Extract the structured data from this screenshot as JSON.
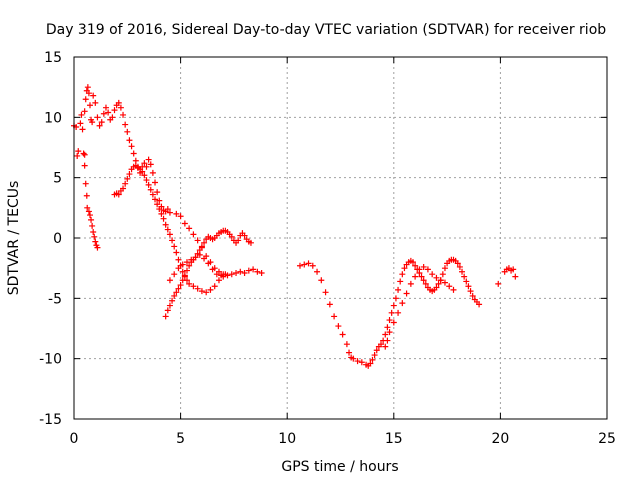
{
  "chart_data": {
    "type": "scatter",
    "title": "Day 319 of 2016, Sidereal Day-to-day VTEC variation (SDTVAR) for receiver riob",
    "xlabel": "GPS time / hours",
    "ylabel": "SDTVAR / TECUs",
    "xlim": [
      0,
      25
    ],
    "ylim": [
      -15,
      15
    ],
    "xticks": [
      0,
      5,
      10,
      15,
      20,
      25
    ],
    "yticks": [
      -15,
      -10,
      -5,
      0,
      5,
      10,
      15
    ],
    "xtick_labels": [
      "0",
      "5",
      "10",
      "15",
      "20",
      "25"
    ],
    "ytick_labels": [
      "-15",
      "-10",
      "-5",
      "0",
      "5",
      "10",
      "15"
    ],
    "grid": true,
    "marker": "plus",
    "color": "#ff0000",
    "series": [
      {
        "points": [
          [
            0.0,
            9.3
          ],
          [
            0.1,
            9.2
          ],
          [
            0.15,
            6.8
          ],
          [
            0.2,
            7.2
          ],
          [
            0.3,
            9.5
          ],
          [
            0.35,
            10.2
          ],
          [
            0.4,
            9.0
          ],
          [
            0.45,
            7.0
          ],
          [
            0.5,
            6.9
          ],
          [
            0.5,
            10.5
          ],
          [
            0.55,
            11.5
          ],
          [
            0.6,
            12.2
          ],
          [
            0.65,
            12.5
          ],
          [
            0.7,
            12.0
          ],
          [
            0.75,
            11.0
          ],
          [
            0.8,
            9.8
          ],
          [
            0.85,
            9.6
          ],
          [
            0.5,
            6.0
          ],
          [
            0.55,
            4.5
          ],
          [
            0.6,
            3.5
          ],
          [
            0.62,
            2.5
          ],
          [
            0.7,
            2.2
          ],
          [
            0.75,
            1.9
          ],
          [
            0.8,
            1.5
          ],
          [
            0.85,
            1.0
          ],
          [
            0.9,
            0.5
          ],
          [
            0.95,
            0.1
          ],
          [
            1.0,
            -0.3
          ],
          [
            1.05,
            -0.6
          ],
          [
            1.1,
            -0.8
          ]
        ]
      },
      {
        "points": [
          [
            0.9,
            11.8
          ],
          [
            1.0,
            11.2
          ],
          [
            1.1,
            10.0
          ],
          [
            1.2,
            9.3
          ],
          [
            1.3,
            9.6
          ],
          [
            1.4,
            10.3
          ],
          [
            1.5,
            10.8
          ],
          [
            1.6,
            10.4
          ],
          [
            1.7,
            9.8
          ],
          [
            1.8,
            10.0
          ],
          [
            1.9,
            10.6
          ],
          [
            2.0,
            11.0
          ],
          [
            2.1,
            11.2
          ],
          [
            2.2,
            10.8
          ],
          [
            2.3,
            10.2
          ],
          [
            2.4,
            9.4
          ],
          [
            2.5,
            8.8
          ],
          [
            2.6,
            8.1
          ],
          [
            2.7,
            7.6
          ],
          [
            2.8,
            7.0
          ],
          [
            2.9,
            6.4
          ],
          [
            3.0,
            5.8
          ],
          [
            3.1,
            5.4
          ],
          [
            3.2,
            5.9
          ],
          [
            3.3,
            6.2
          ],
          [
            3.4,
            5.9
          ],
          [
            3.5,
            6.5
          ],
          [
            3.6,
            6.1
          ],
          [
            3.7,
            5.4
          ],
          [
            3.8,
            4.6
          ],
          [
            3.9,
            3.8
          ],
          [
            4.0,
            3.1
          ],
          [
            4.1,
            2.6
          ],
          [
            4.2,
            2.3
          ],
          [
            4.3,
            2.2
          ],
          [
            4.4,
            2.4
          ],
          [
            4.5,
            2.1
          ]
        ]
      },
      {
        "points": [
          [
            1.9,
            3.6
          ],
          [
            2.0,
            3.7
          ],
          [
            2.1,
            3.6
          ],
          [
            2.2,
            3.9
          ],
          [
            2.3,
            4.1
          ],
          [
            2.4,
            4.5
          ],
          [
            2.5,
            4.9
          ],
          [
            2.6,
            5.3
          ],
          [
            2.7,
            5.7
          ],
          [
            2.8,
            5.9
          ],
          [
            2.9,
            6.0
          ],
          [
            3.0,
            5.9
          ],
          [
            3.1,
            5.7
          ],
          [
            3.2,
            5.5
          ],
          [
            3.3,
            5.2
          ],
          [
            3.4,
            4.8
          ],
          [
            3.5,
            4.4
          ],
          [
            3.6,
            4.0
          ],
          [
            3.7,
            3.6
          ],
          [
            3.8,
            3.2
          ],
          [
            3.9,
            2.8
          ],
          [
            4.0,
            2.4
          ],
          [
            4.1,
            2.0
          ],
          [
            4.2,
            1.6
          ],
          [
            4.3,
            1.1
          ],
          [
            4.4,
            0.7
          ],
          [
            4.5,
            0.3
          ],
          [
            4.6,
            -0.2
          ],
          [
            4.7,
            -0.7
          ],
          [
            4.8,
            -1.2
          ],
          [
            4.9,
            -1.8
          ],
          [
            5.0,
            -2.3
          ],
          [
            5.1,
            -2.8
          ],
          [
            5.2,
            -3.2
          ],
          [
            5.3,
            -3.5
          ],
          [
            5.4,
            -3.8
          ],
          [
            5.6,
            -4.0
          ],
          [
            5.8,
            -4.2
          ],
          [
            6.0,
            -4.4
          ],
          [
            6.2,
            -4.5
          ],
          [
            6.4,
            -4.3
          ],
          [
            6.6,
            -4.0
          ],
          [
            6.8,
            -3.5
          ],
          [
            7.0,
            -3.2
          ]
        ]
      },
      {
        "points": [
          [
            4.8,
            2.0
          ],
          [
            5.0,
            1.8
          ],
          [
            5.2,
            1.2
          ],
          [
            5.4,
            0.8
          ],
          [
            5.6,
            0.3
          ],
          [
            5.8,
            -0.2
          ],
          [
            6.0,
            -0.8
          ],
          [
            6.2,
            -1.5
          ],
          [
            6.4,
            -2.0
          ],
          [
            6.6,
            -2.5
          ],
          [
            6.8,
            -2.8
          ],
          [
            7.0,
            -3.0
          ],
          [
            7.2,
            -3.1
          ],
          [
            7.4,
            -3.0
          ],
          [
            7.6,
            -2.9
          ],
          [
            7.8,
            -2.8
          ],
          [
            8.0,
            -2.9
          ],
          [
            8.2,
            -2.7
          ],
          [
            8.4,
            -2.6
          ],
          [
            8.6,
            -2.8
          ],
          [
            8.8,
            -2.9
          ]
        ]
      },
      {
        "points": [
          [
            4.3,
            -6.5
          ],
          [
            4.4,
            -6.0
          ],
          [
            4.5,
            -5.6
          ],
          [
            4.6,
            -5.2
          ],
          [
            4.7,
            -4.8
          ],
          [
            4.8,
            -4.5
          ],
          [
            4.9,
            -4.2
          ],
          [
            5.0,
            -3.9
          ],
          [
            5.1,
            -3.5
          ],
          [
            5.2,
            -3.1
          ],
          [
            5.3,
            -2.7
          ],
          [
            5.4,
            -2.3
          ],
          [
            5.5,
            -2.0
          ],
          [
            5.6,
            -1.8
          ],
          [
            5.7,
            -1.6
          ],
          [
            5.8,
            -1.3
          ],
          [
            5.9,
            -1.0
          ],
          [
            6.0,
            -0.7
          ],
          [
            6.1,
            -0.4
          ],
          [
            6.2,
            -0.1
          ],
          [
            6.3,
            0.1
          ],
          [
            6.4,
            0.0
          ],
          [
            6.5,
            -0.1
          ],
          [
            6.6,
            0.0
          ],
          [
            6.7,
            0.2
          ],
          [
            6.8,
            0.4
          ],
          [
            6.9,
            0.5
          ],
          [
            7.0,
            0.6
          ],
          [
            7.1,
            0.6
          ],
          [
            7.2,
            0.5
          ],
          [
            7.3,
            0.3
          ],
          [
            7.4,
            0.1
          ],
          [
            7.5,
            -0.2
          ],
          [
            7.6,
            -0.4
          ],
          [
            7.7,
            -0.2
          ],
          [
            7.8,
            0.2
          ],
          [
            7.9,
            0.4
          ],
          [
            8.0,
            0.2
          ],
          [
            8.1,
            -0.1
          ],
          [
            8.2,
            -0.3
          ],
          [
            8.3,
            -0.4
          ]
        ]
      },
      {
        "points": [
          [
            4.5,
            -3.5
          ],
          [
            4.7,
            -3.0
          ],
          [
            4.9,
            -2.5
          ],
          [
            5.1,
            -2.2
          ],
          [
            5.3,
            -2.0
          ],
          [
            5.5,
            -1.8
          ],
          [
            5.7,
            -1.6
          ],
          [
            5.9,
            -1.4
          ],
          [
            6.1,
            -1.7
          ],
          [
            6.3,
            -2.1
          ],
          [
            6.5,
            -2.6
          ],
          [
            6.7,
            -3.0
          ],
          [
            6.9,
            -3.1
          ],
          [
            7.1,
            -3.0
          ]
        ]
      },
      {
        "points": [
          [
            10.6,
            -2.3
          ],
          [
            10.8,
            -2.2
          ],
          [
            11.0,
            -2.1
          ],
          [
            11.2,
            -2.3
          ],
          [
            11.4,
            -2.8
          ],
          [
            11.6,
            -3.5
          ],
          [
            11.8,
            -4.5
          ],
          [
            12.0,
            -5.5
          ],
          [
            12.2,
            -6.5
          ],
          [
            12.4,
            -7.3
          ],
          [
            12.6,
            -8.0
          ],
          [
            12.8,
            -8.8
          ],
          [
            12.9,
            -9.5
          ],
          [
            13.0,
            -9.9
          ],
          [
            13.1,
            -10.0
          ],
          [
            13.3,
            -10.2
          ],
          [
            13.5,
            -10.3
          ],
          [
            13.7,
            -10.5
          ],
          [
            13.8,
            -10.6
          ],
          [
            13.9,
            -10.4
          ],
          [
            14.0,
            -10.1
          ],
          [
            14.1,
            -9.7
          ],
          [
            14.2,
            -9.3
          ],
          [
            14.3,
            -9.0
          ],
          [
            14.4,
            -8.8
          ],
          [
            14.5,
            -8.5
          ],
          [
            14.6,
            -8.0
          ],
          [
            14.7,
            -7.4
          ],
          [
            14.8,
            -6.8
          ],
          [
            14.9,
            -6.2
          ],
          [
            15.0,
            -5.6
          ],
          [
            15.1,
            -5.0
          ],
          [
            15.2,
            -4.3
          ],
          [
            15.3,
            -3.6
          ],
          [
            15.4,
            -3.0
          ],
          [
            15.5,
            -2.5
          ],
          [
            15.6,
            -2.2
          ],
          [
            15.7,
            -2.0
          ],
          [
            15.8,
            -1.9
          ],
          [
            15.9,
            -2.0
          ],
          [
            16.0,
            -2.3
          ],
          [
            16.1,
            -2.6
          ],
          [
            16.2,
            -2.9
          ],
          [
            16.3,
            -3.2
          ],
          [
            16.4,
            -3.5
          ],
          [
            16.5,
            -3.8
          ],
          [
            16.6,
            -4.1
          ],
          [
            16.7,
            -4.3
          ],
          [
            16.8,
            -4.4
          ],
          [
            16.9,
            -4.3
          ],
          [
            17.0,
            -4.1
          ],
          [
            17.1,
            -3.8
          ],
          [
            17.2,
            -3.5
          ],
          [
            17.3,
            -3.0
          ],
          [
            17.4,
            -2.5
          ],
          [
            17.5,
            -2.1
          ],
          [
            17.6,
            -1.9
          ],
          [
            17.7,
            -1.8
          ],
          [
            17.8,
            -1.8
          ],
          [
            17.9,
            -1.9
          ],
          [
            18.0,
            -2.1
          ],
          [
            18.1,
            -2.4
          ],
          [
            18.2,
            -2.8
          ],
          [
            18.3,
            -3.2
          ],
          [
            18.4,
            -3.6
          ],
          [
            18.5,
            -4.0
          ],
          [
            18.6,
            -4.4
          ],
          [
            18.7,
            -4.8
          ],
          [
            18.8,
            -5.1
          ],
          [
            18.9,
            -5.3
          ],
          [
            19.0,
            -5.5
          ]
        ]
      },
      {
        "points": [
          [
            14.6,
            -9.0
          ],
          [
            14.7,
            -8.5
          ],
          [
            14.8,
            -7.8
          ],
          [
            15.0,
            -7.0
          ],
          [
            15.2,
            -6.2
          ],
          [
            15.4,
            -5.4
          ],
          [
            15.6,
            -4.6
          ],
          [
            15.8,
            -3.8
          ],
          [
            16.0,
            -3.2
          ],
          [
            16.2,
            -2.6
          ],
          [
            16.4,
            -2.4
          ],
          [
            16.6,
            -2.6
          ],
          [
            16.8,
            -3.0
          ],
          [
            17.0,
            -3.3
          ],
          [
            17.2,
            -3.5
          ],
          [
            17.4,
            -3.7
          ],
          [
            17.6,
            -4.0
          ],
          [
            17.8,
            -4.3
          ]
        ]
      },
      {
        "points": [
          [
            19.9,
            -3.8
          ],
          [
            20.2,
            -2.8
          ],
          [
            20.3,
            -2.6
          ],
          [
            20.4,
            -2.5
          ],
          [
            20.5,
            -2.7
          ],
          [
            20.6,
            -2.6
          ],
          [
            20.7,
            -3.2
          ]
        ]
      }
    ]
  }
}
